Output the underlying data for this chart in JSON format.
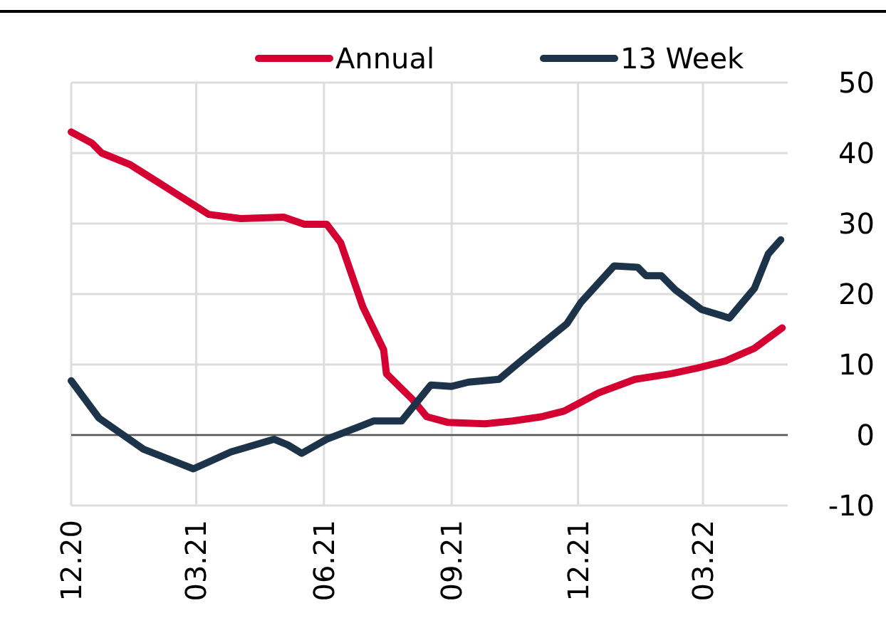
{
  "chart_data": {
    "type": "line",
    "xlim": [
      "2020-12-01",
      "2022-05-01"
    ],
    "xticks": [
      {
        "value": "2020-12-01",
        "label": "12.20"
      },
      {
        "value": "2021-03-01",
        "label": "03.21"
      },
      {
        "value": "2021-06-01",
        "label": "06.21"
      },
      {
        "value": "2021-09-01",
        "label": "09.21"
      },
      {
        "value": "2021-12-01",
        "label": "12.21"
      },
      {
        "value": "2022-03-01",
        "label": "03.22"
      }
    ],
    "ylim": [
      -10,
      50
    ],
    "yticks": [
      -10,
      0,
      10,
      20,
      30,
      40,
      50
    ],
    "grid": true,
    "legend": "top",
    "line_style": "solid",
    "marker": "none",
    "ref_lines": [
      {
        "axis": "y",
        "value": 0,
        "color": "#555555"
      }
    ],
    "series": [
      {
        "name": "Annual",
        "color": "#d50032",
        "x": [
          "2020-12-01",
          "2020-12-16",
          "2020-12-23",
          "2021-01-12",
          "2021-02-02",
          "2021-02-22",
          "2021-03-10",
          "2021-04-02",
          "2021-05-03",
          "2021-05-18",
          "2021-06-03",
          "2021-06-13",
          "2021-06-29",
          "2021-07-14",
          "2021-07-16",
          "2021-08-04",
          "2021-08-14",
          "2021-08-29",
          "2021-09-25",
          "2021-10-15",
          "2021-11-05",
          "2021-11-21",
          "2021-12-16",
          "2022-01-11",
          "2022-02-06",
          "2022-02-25",
          "2022-03-17",
          "2022-04-07",
          "2022-04-27"
        ],
        "values": [
          43,
          41.4,
          40,
          38.4,
          35.8,
          33.3,
          31.3,
          30.7,
          30.9,
          29.9,
          29.9,
          27.3,
          18.2,
          12.1,
          8.7,
          5,
          2.6,
          1.8,
          1.6,
          2,
          2.6,
          3.4,
          6,
          7.9,
          8.7,
          9.5,
          10.5,
          12.3,
          15.2
        ]
      },
      {
        "name": "13 Week",
        "color": "#1c3349",
        "x": [
          "2020-12-01",
          "2020-12-21",
          "2021-01-22",
          "2021-02-27",
          "2021-03-26",
          "2021-04-26",
          "2021-05-06",
          "2021-05-16",
          "2021-06-03",
          "2021-07-07",
          "2021-07-27",
          "2021-08-17",
          "2021-09-01",
          "2021-09-13",
          "2021-10-05",
          "2021-10-22",
          "2021-11-23",
          "2021-12-03",
          "2021-12-27",
          "2022-01-13",
          "2022-01-19",
          "2022-01-30",
          "2022-02-09",
          "2022-02-28",
          "2022-03-20",
          "2022-04-07",
          "2022-04-17",
          "2022-04-26"
        ],
        "values": [
          7.7,
          2.4,
          -2,
          -4.8,
          -2.4,
          -0.6,
          -1.4,
          -2.6,
          -0.6,
          2,
          2,
          7.1,
          6.9,
          7.5,
          7.9,
          10.7,
          15.8,
          18.8,
          24,
          23.8,
          22.6,
          22.6,
          20.6,
          17.8,
          16.6,
          20.8,
          25.7,
          27.7
        ]
      }
    ]
  }
}
